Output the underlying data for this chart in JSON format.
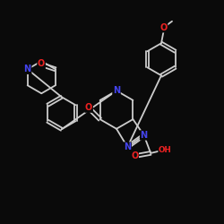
{
  "bg": "#0a0a0a",
  "bc": "#cccccc",
  "NC": "#4444ee",
  "OC": "#ee2222",
  "lw": 1.3,
  "fs": 7.0,
  "xlim": [
    0,
    10
  ],
  "ylim": [
    0,
    10
  ]
}
